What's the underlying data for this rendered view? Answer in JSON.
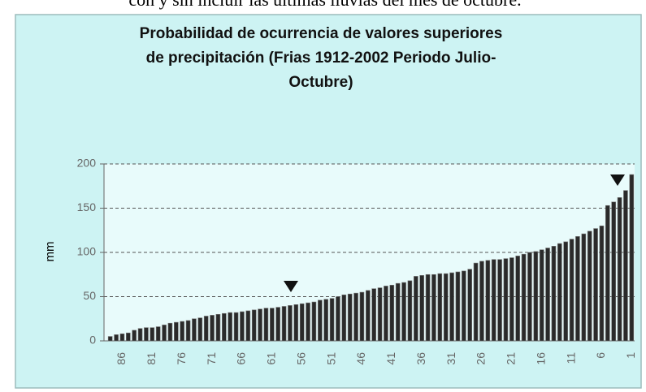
{
  "caption": "con y sin incluir las últimas lluvias del mes de octubre.",
  "chart_data": {
    "type": "bar",
    "title": [
      "Probabilidad de ocurrencia de valores superiores",
      "de precipitación (Frias 1912-2002 Periodo Julio-",
      "Octubre)"
    ],
    "y_label": "mm",
    "categories": [
      null,
      null,
      "86",
      null,
      null,
      null,
      null,
      "81",
      null,
      null,
      null,
      null,
      "76",
      null,
      null,
      null,
      null,
      "71",
      null,
      null,
      null,
      null,
      "66",
      null,
      null,
      null,
      null,
      "61",
      null,
      null,
      null,
      null,
      "56",
      null,
      null,
      null,
      null,
      "51",
      null,
      null,
      null,
      null,
      "46",
      null,
      null,
      null,
      null,
      "41",
      null,
      null,
      null,
      null,
      "36",
      null,
      null,
      null,
      null,
      "31",
      null,
      null,
      null,
      null,
      "26",
      null,
      null,
      null,
      null,
      "21",
      null,
      null,
      null,
      null,
      "16",
      null,
      null,
      null,
      null,
      "11",
      null,
      null,
      null,
      null,
      "6",
      null,
      null,
      null,
      null,
      "1"
    ],
    "values": [
      5,
      7,
      8,
      9,
      12,
      14,
      15,
      15,
      16,
      18,
      20,
      21,
      22,
      23,
      25,
      26,
      28,
      29,
      30,
      31,
      32,
      32,
      33,
      34,
      35,
      36,
      37,
      37,
      38,
      39,
      40,
      41,
      42,
      43,
      44,
      46,
      47,
      48,
      50,
      52,
      53,
      54,
      55,
      57,
      59,
      60,
      62,
      63,
      65,
      66,
      68,
      73,
      74,
      75,
      75,
      76,
      76,
      77,
      78,
      79,
      81,
      88,
      90,
      91,
      92,
      92,
      93,
      94,
      96,
      98,
      100,
      101,
      103,
      105,
      107,
      110,
      112,
      115,
      118,
      121,
      124,
      127,
      130,
      153,
      157,
      162,
      170,
      188
    ],
    "color": "#2a2a2a",
    "ylim": [
      0,
      200
    ],
    "yticks": [
      0,
      50,
      100,
      150,
      200
    ],
    "grid": true
  }
}
